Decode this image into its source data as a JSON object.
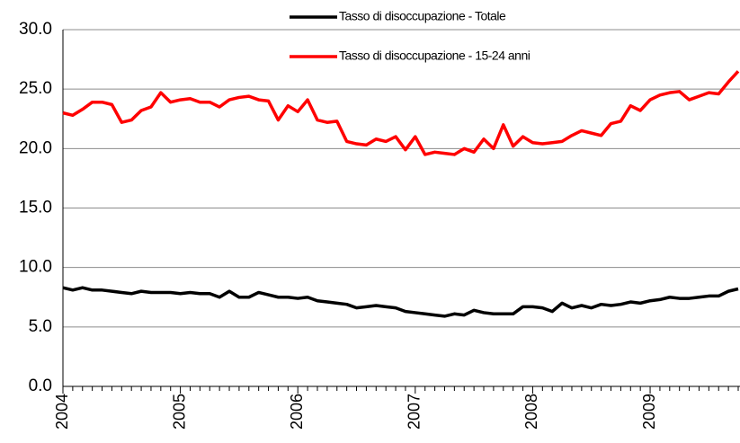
{
  "chart_data": {
    "type": "line",
    "categories": [
      "2004",
      null,
      null,
      null,
      null,
      null,
      null,
      null,
      null,
      null,
      null,
      null,
      "2005",
      null,
      null,
      null,
      null,
      null,
      null,
      null,
      null,
      null,
      null,
      null,
      "2006",
      null,
      null,
      null,
      null,
      null,
      null,
      null,
      null,
      null,
      null,
      null,
      "2007",
      null,
      null,
      null,
      null,
      null,
      null,
      null,
      null,
      null,
      null,
      null,
      "2008",
      null,
      null,
      null,
      null,
      null,
      null,
      null,
      null,
      null,
      null,
      null,
      "2009",
      null,
      null,
      null,
      null,
      null,
      null,
      null,
      null,
      null
    ],
    "series": [
      {
        "name": "Tasso di disoccupazione - Totale",
        "color": "#000000",
        "values": [
          8.3,
          8.1,
          8.3,
          8.1,
          8.1,
          8.0,
          7.9,
          7.8,
          8.0,
          7.9,
          7.9,
          7.9,
          7.8,
          7.9,
          7.8,
          7.8,
          7.5,
          8.0,
          7.5,
          7.5,
          7.9,
          7.7,
          7.5,
          7.5,
          7.4,
          7.5,
          7.2,
          7.1,
          7.0,
          6.9,
          6.6,
          6.7,
          6.8,
          6.7,
          6.6,
          6.3,
          6.2,
          6.1,
          6.0,
          5.9,
          6.1,
          6.0,
          6.4,
          6.2,
          6.1,
          6.1,
          6.1,
          6.7,
          6.7,
          6.6,
          6.3,
          7.0,
          6.6,
          6.8,
          6.6,
          6.9,
          6.8,
          6.9,
          7.1,
          7.0,
          7.2,
          7.3,
          7.5,
          7.4,
          7.4,
          7.5,
          7.6,
          7.6,
          8.0,
          8.2
        ]
      },
      {
        "name": "Tasso di disoccupazione - 15-24 anni",
        "color": "#ff0000",
        "values": [
          23.0,
          22.8,
          23.3,
          23.9,
          23.9,
          23.7,
          22.2,
          22.4,
          23.2,
          23.5,
          24.7,
          23.9,
          24.1,
          24.2,
          23.9,
          23.9,
          23.5,
          24.1,
          24.3,
          24.4,
          24.1,
          24.0,
          22.4,
          23.6,
          23.1,
          24.1,
          22.4,
          22.2,
          22.3,
          20.6,
          20.4,
          20.3,
          20.8,
          20.6,
          21.0,
          19.9,
          21.0,
          19.5,
          19.7,
          19.6,
          19.5,
          20.0,
          19.7,
          20.8,
          20.0,
          22.0,
          20.2,
          21.0,
          20.5,
          20.4,
          20.5,
          20.6,
          21.1,
          21.5,
          21.3,
          21.1,
          22.1,
          22.3,
          23.6,
          23.2,
          24.1,
          24.5,
          24.7,
          24.8,
          24.1,
          24.4,
          24.7,
          24.6,
          25.6,
          26.5
        ]
      }
    ],
    "ylim": [
      0,
      30
    ],
    "yticks": [
      {
        "value": 0,
        "label": "0.0"
      },
      {
        "value": 5,
        "label": "5.0"
      },
      {
        "value": 10,
        "label": "10.0"
      },
      {
        "value": 15,
        "label": "15.0"
      },
      {
        "value": 20,
        "label": "20.0"
      },
      {
        "value": 25,
        "label": "25.0"
      },
      {
        "value": 30,
        "label": "30.0"
      }
    ],
    "grid": true,
    "legend": "top"
  }
}
